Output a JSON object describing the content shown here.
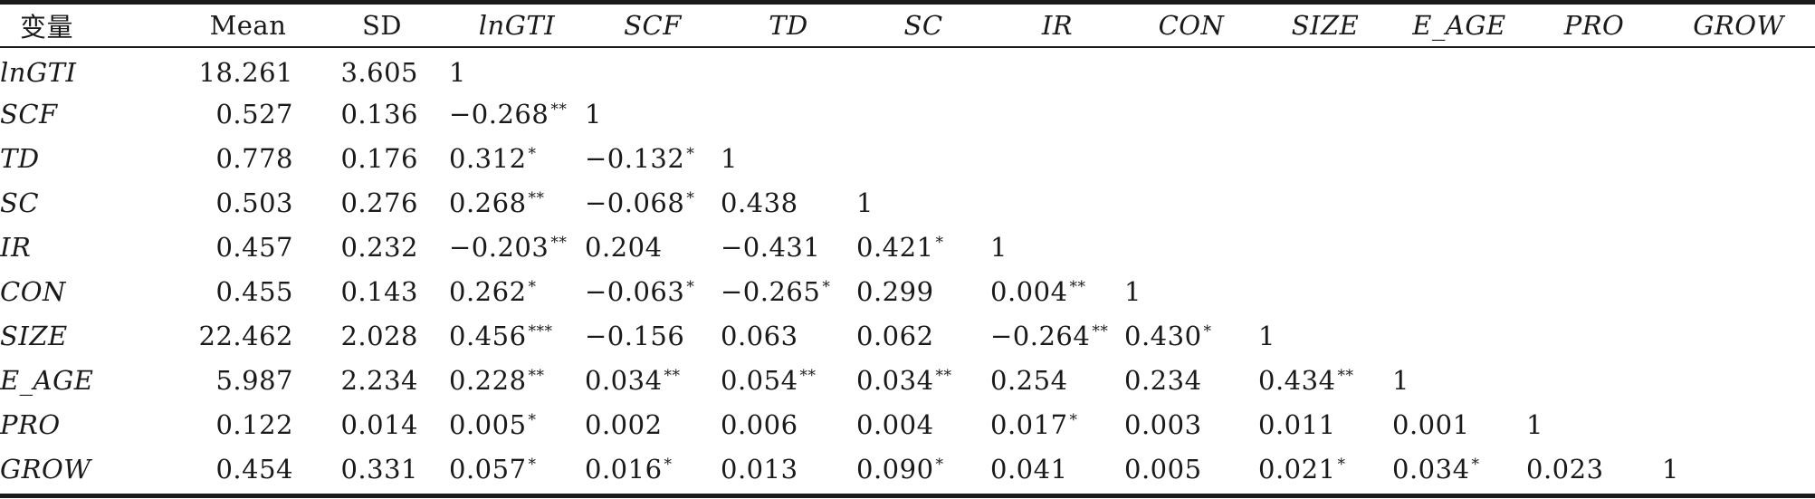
{
  "table": {
    "columns": [
      "变量",
      "Mean",
      "SD",
      "lnGTI",
      "SCF",
      "TD",
      "SC",
      "IR",
      "CON",
      "SIZE",
      "E_AGE",
      "PRO",
      "GROW"
    ],
    "rows": [
      {
        "var": "lnGTI",
        "mean": "18.261",
        "sd": "3.605",
        "c": [
          {
            "v": "1",
            "s": ""
          }
        ]
      },
      {
        "var": "SCF",
        "mean": "0.527",
        "sd": "0.136",
        "c": [
          {
            "v": "−0.268",
            "s": "**"
          },
          {
            "v": "1",
            "s": ""
          }
        ]
      },
      {
        "var": "TD",
        "mean": "0.778",
        "sd": "0.176",
        "c": [
          {
            "v": "0.312",
            "s": "*"
          },
          {
            "v": "−0.132",
            "s": "*"
          },
          {
            "v": "1",
            "s": ""
          }
        ]
      },
      {
        "var": "SC",
        "mean": "0.503",
        "sd": "0.276",
        "c": [
          {
            "v": "0.268",
            "s": "**"
          },
          {
            "v": "−0.068",
            "s": "*"
          },
          {
            "v": "0.438",
            "s": ""
          },
          {
            "v": "1",
            "s": ""
          }
        ]
      },
      {
        "var": "IR",
        "mean": "0.457",
        "sd": "0.232",
        "c": [
          {
            "v": "−0.203",
            "s": "**"
          },
          {
            "v": "0.204",
            "s": ""
          },
          {
            "v": "−0.431",
            "s": ""
          },
          {
            "v": "0.421",
            "s": "*"
          },
          {
            "v": "1",
            "s": ""
          }
        ]
      },
      {
        "var": "CON",
        "mean": "0.455",
        "sd": "0.143",
        "c": [
          {
            "v": "0.262",
            "s": "*"
          },
          {
            "v": "−0.063",
            "s": "*"
          },
          {
            "v": "−0.265",
            "s": "*"
          },
          {
            "v": "0.299",
            "s": ""
          },
          {
            "v": "0.004",
            "s": "**"
          },
          {
            "v": "1",
            "s": ""
          }
        ]
      },
      {
        "var": "SIZE",
        "mean": "22.462",
        "sd": "2.028",
        "c": [
          {
            "v": "0.456",
            "s": "***"
          },
          {
            "v": "−0.156",
            "s": ""
          },
          {
            "v": "0.063",
            "s": ""
          },
          {
            "v": "0.062",
            "s": ""
          },
          {
            "v": "−0.264",
            "s": "**"
          },
          {
            "v": "0.430",
            "s": "*"
          },
          {
            "v": "1",
            "s": ""
          }
        ]
      },
      {
        "var": "E_AGE",
        "mean": "5.987",
        "sd": "2.234",
        "c": [
          {
            "v": "0.228",
            "s": "**"
          },
          {
            "v": "0.034",
            "s": "**"
          },
          {
            "v": "0.054",
            "s": "**"
          },
          {
            "v": "0.034",
            "s": "**"
          },
          {
            "v": "0.254",
            "s": ""
          },
          {
            "v": "0.234",
            "s": ""
          },
          {
            "v": "0.434",
            "s": "**"
          },
          {
            "v": "1",
            "s": ""
          }
        ]
      },
      {
        "var": "PRO",
        "mean": "0.122",
        "sd": "0.014",
        "c": [
          {
            "v": "0.005",
            "s": "*"
          },
          {
            "v": "0.002",
            "s": ""
          },
          {
            "v": "0.006",
            "s": ""
          },
          {
            "v": "0.004",
            "s": ""
          },
          {
            "v": "0.017",
            "s": "*"
          },
          {
            "v": "0.003",
            "s": ""
          },
          {
            "v": "0.011",
            "s": ""
          },
          {
            "v": "0.001",
            "s": ""
          },
          {
            "v": "1",
            "s": ""
          }
        ]
      },
      {
        "var": "GROW",
        "mean": "0.454",
        "sd": "0.331",
        "c": [
          {
            "v": "0.057",
            "s": "*"
          },
          {
            "v": "0.016",
            "s": "*"
          },
          {
            "v": "0.013",
            "s": ""
          },
          {
            "v": "0.090",
            "s": "*"
          },
          {
            "v": "0.041",
            "s": ""
          },
          {
            "v": "0.005",
            "s": ""
          },
          {
            "v": "0.021",
            "s": "*"
          },
          {
            "v": "0.034",
            "s": "*"
          },
          {
            "v": "0.023",
            "s": ""
          },
          {
            "v": "1",
            "s": ""
          }
        ]
      }
    ]
  }
}
